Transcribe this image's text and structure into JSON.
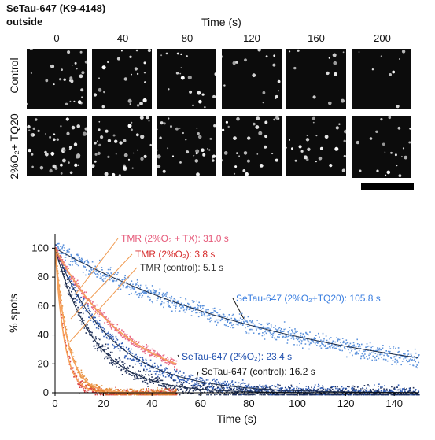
{
  "header": {
    "title_line1": "SeTau-647 (K9-4148)",
    "title_line2": "outside",
    "time_label": "Time (s)",
    "time_ticks": [
      "0",
      "40",
      "80",
      "120",
      "160",
      "200"
    ]
  },
  "rows": {
    "control": "Control",
    "treated": "2%O₂+ TQ20"
  },
  "chart_data": {
    "type": "scatter",
    "xlabel": "Time (s)",
    "ylabel": "% spots",
    "xlim": [
      0,
      150
    ],
    "ylim": [
      0,
      110
    ],
    "xticks": [
      0,
      20,
      40,
      60,
      80,
      100,
      120,
      140
    ],
    "yticks": [
      0,
      20,
      40,
      60,
      80,
      100
    ],
    "series": [
      {
        "name": "SeTau-647 (2%O₂+TQ20): 105.8 s",
        "tau": 105.8,
        "x_end": 150,
        "color": "#4a86d8"
      },
      {
        "name": "SeTau-647 (2%O₂): 23.4 s",
        "tau": 23.4,
        "x_end": 150,
        "color": "#1f4fae"
      },
      {
        "name": "SeTau-647 (control): 16.2 s",
        "tau": 16.2,
        "x_end": 150,
        "color": "#10214f"
      },
      {
        "name": "TMR (2%O₂ + TX): 31.0 s",
        "tau": 31.0,
        "x_end": 50,
        "color": "#e65a7a"
      },
      {
        "name": "TMR (2%O₂): 3.8 s",
        "tau": 3.8,
        "x_end": 50,
        "color": "#d62a2a"
      },
      {
        "name": "TMR (control): 5.1 s",
        "tau": 5.1,
        "x_end": 50,
        "color": "#e0842a"
      }
    ]
  }
}
